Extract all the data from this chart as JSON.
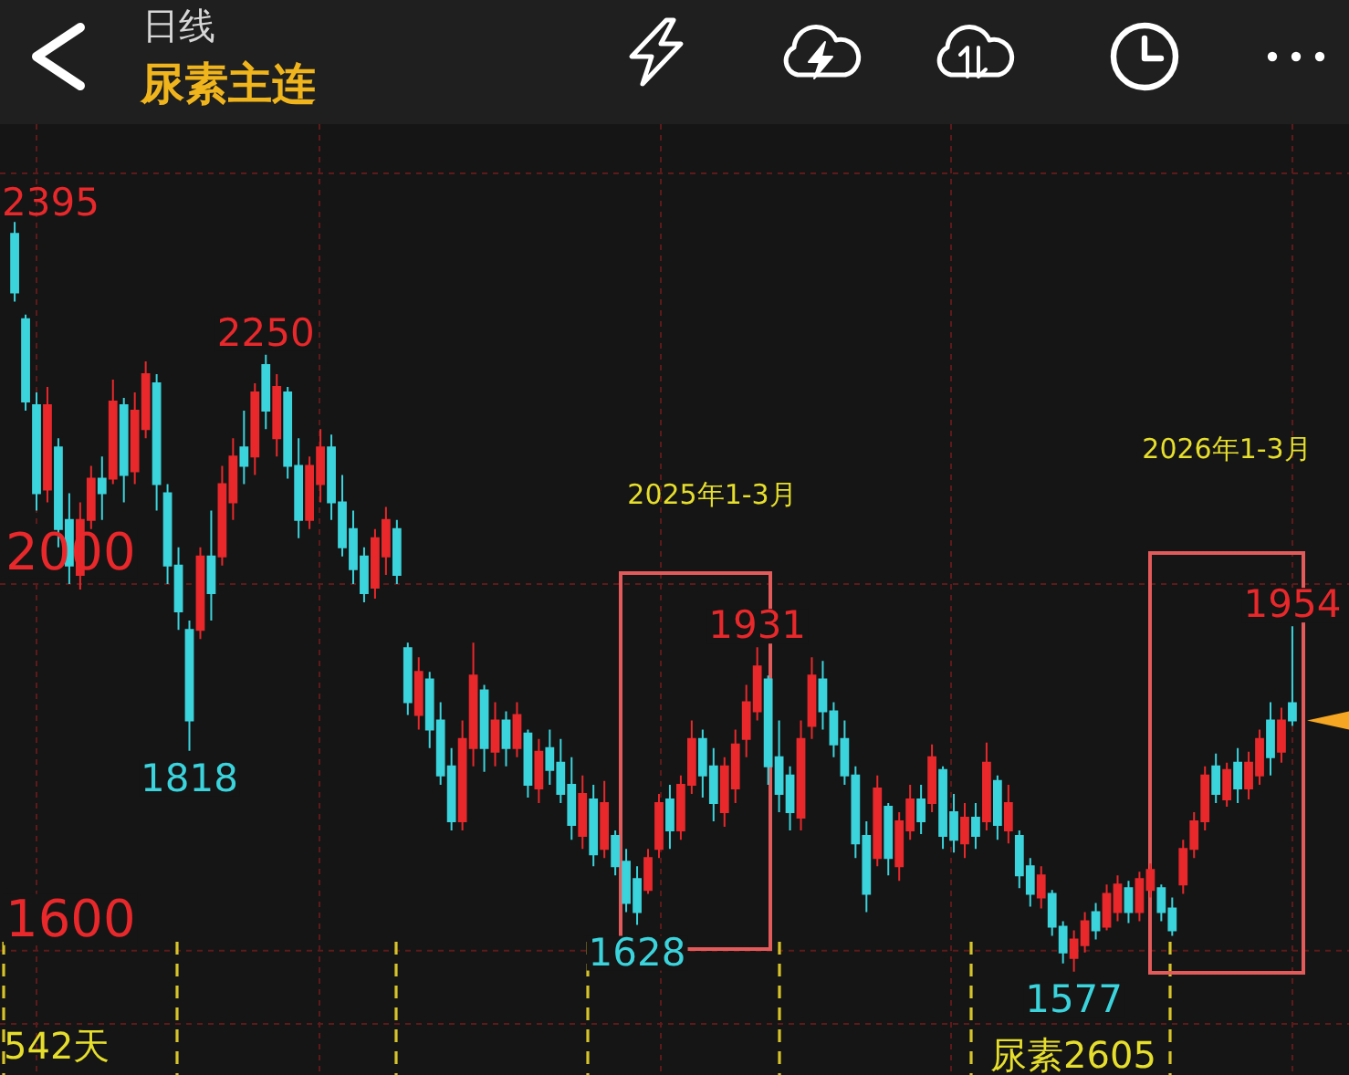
{
  "chart_data": {
    "type": "candlestick",
    "title": "尿素主连",
    "subtitle": "日线",
    "categories": [
      null,
      null,
      null,
      null,
      null,
      null,
      null,
      null,
      null,
      null,
      null,
      null,
      null,
      null,
      null,
      null,
      null,
      null,
      null,
      null,
      null,
      null,
      null,
      null,
      null,
      null,
      null,
      null,
      null,
      null,
      null,
      null,
      null,
      null,
      null,
      null,
      null,
      null,
      null,
      null,
      null,
      null,
      null,
      null,
      null,
      null,
      null,
      null,
      null,
      null,
      null,
      null,
      null,
      null,
      null,
      null,
      null,
      null,
      null,
      null,
      null,
      null,
      null,
      null,
      null,
      null,
      null,
      null,
      null,
      null,
      null,
      null,
      null,
      null,
      null,
      null,
      null,
      null,
      null,
      null,
      null,
      null,
      null,
      null,
      null,
      null,
      null,
      null,
      null,
      null,
      null,
      null,
      null,
      null,
      null,
      null,
      null,
      null,
      null,
      null,
      null,
      null,
      null,
      null,
      null,
      null,
      null,
      null,
      null,
      null,
      null,
      null,
      null,
      null,
      null,
      null,
      null,
      null
    ],
    "ohlc": [
      [
        2382,
        2395,
        2308,
        2318
      ],
      [
        2289,
        2294,
        2189,
        2199
      ],
      [
        2195,
        2209,
        2080,
        2099
      ],
      [
        2103,
        2215,
        2089,
        2195
      ],
      [
        2149,
        2159,
        2040,
        2060
      ],
      [
        2070,
        2099,
        2000,
        2020
      ],
      [
        2010,
        2089,
        1994,
        2070
      ],
      [
        2070,
        2129,
        2060,
        2115
      ],
      [
        2115,
        2139,
        2070,
        2099
      ],
      [
        2115,
        2223,
        2109,
        2199
      ],
      [
        2195,
        2203,
        2089,
        2119
      ],
      [
        2123,
        2209,
        2109,
        2189
      ],
      [
        2169,
        2243,
        2159,
        2229
      ],
      [
        2219,
        2229,
        2080,
        2109
      ],
      [
        2099,
        2109,
        2000,
        2020
      ],
      [
        2020,
        2040,
        1950,
        1970
      ],
      [
        1950,
        1960,
        1818,
        1851
      ],
      [
        1950,
        2040,
        1940,
        2030
      ],
      [
        2030,
        2080,
        1960,
        1990
      ],
      [
        2030,
        2129,
        2020,
        2109
      ],
      [
        2089,
        2159,
        2070,
        2139
      ],
      [
        2149,
        2189,
        2109,
        2129
      ],
      [
        2139,
        2219,
        2119,
        2209
      ],
      [
        2239,
        2250,
        2169,
        2189
      ],
      [
        2159,
        2229,
        2139,
        2215
      ],
      [
        2209,
        2215,
        2115,
        2129
      ],
      [
        2129,
        2159,
        2050,
        2070
      ],
      [
        2070,
        2139,
        2060,
        2129
      ],
      [
        2109,
        2169,
        2089,
        2149
      ],
      [
        2149,
        2163,
        2070,
        2089
      ],
      [
        2089,
        2119,
        2030,
        2040
      ],
      [
        2060,
        2080,
        2000,
        2016
      ],
      [
        2030,
        2040,
        1980,
        1990
      ],
      [
        1996,
        2060,
        1984,
        2050
      ],
      [
        2030,
        2084,
        2010,
        2070
      ],
      [
        2060,
        2070,
        2000,
        2010
      ],
      [
        1930,
        1936,
        1857,
        1871
      ],
      [
        1857,
        1920,
        1841,
        1904
      ],
      [
        1896,
        1904,
        1821,
        1841
      ],
      [
        1851,
        1871,
        1781,
        1791
      ],
      [
        1801,
        1821,
        1731,
        1741
      ],
      [
        1741,
        1851,
        1731,
        1831
      ],
      [
        1821,
        1936,
        1801,
        1900
      ],
      [
        1884,
        1890,
        1795,
        1821
      ],
      [
        1817,
        1871,
        1801,
        1851
      ],
      [
        1851,
        1861,
        1801,
        1821
      ],
      [
        1821,
        1871,
        1811,
        1857
      ],
      [
        1837,
        1841,
        1767,
        1781
      ],
      [
        1777,
        1831,
        1761,
        1817
      ],
      [
        1821,
        1841,
        1781,
        1797
      ],
      [
        1805,
        1831,
        1761,
        1771
      ],
      [
        1781,
        1811,
        1721,
        1737
      ],
      [
        1725,
        1791,
        1711,
        1771
      ],
      [
        1765,
        1781,
        1692,
        1705
      ],
      [
        1711,
        1785,
        1701,
        1761
      ],
      [
        1725,
        1731,
        1682,
        1692
      ],
      [
        1697,
        1711,
        1642,
        1652
      ],
      [
        1678,
        1692,
        1628,
        1642
      ],
      [
        1666,
        1711,
        1662,
        1701
      ],
      [
        1711,
        1771,
        1701,
        1761
      ],
      [
        1765,
        1781,
        1711,
        1731
      ],
      [
        1731,
        1791,
        1721,
        1781
      ],
      [
        1781,
        1851,
        1771,
        1831
      ],
      [
        1831,
        1841,
        1767,
        1791
      ],
      [
        1801,
        1821,
        1741,
        1761
      ],
      [
        1751,
        1811,
        1735,
        1801
      ],
      [
        1777,
        1841,
        1761,
        1825
      ],
      [
        1831,
        1890,
        1811,
        1871
      ],
      [
        1861,
        1931,
        1851,
        1910
      ],
      [
        1896,
        1900,
        1781,
        1801
      ],
      [
        1811,
        1851,
        1751,
        1771
      ],
      [
        1791,
        1801,
        1731,
        1751
      ],
      [
        1745,
        1851,
        1731,
        1831
      ],
      [
        1845,
        1920,
        1831,
        1900
      ],
      [
        1896,
        1916,
        1841,
        1861
      ],
      [
        1861,
        1871,
        1811,
        1825
      ],
      [
        1831,
        1851,
        1781,
        1791
      ],
      [
        1791,
        1801,
        1701,
        1717
      ],
      [
        1725,
        1741,
        1642,
        1662
      ],
      [
        1701,
        1791,
        1692,
        1777
      ],
      [
        1757,
        1761,
        1682,
        1701
      ],
      [
        1692,
        1751,
        1676,
        1741
      ],
      [
        1731,
        1781,
        1721,
        1765
      ],
      [
        1765,
        1781,
        1727,
        1741
      ],
      [
        1761,
        1825,
        1751,
        1811
      ],
      [
        1797,
        1801,
        1711,
        1725
      ],
      [
        1751,
        1771,
        1707,
        1721
      ],
      [
        1717,
        1761,
        1701,
        1745
      ],
      [
        1745,
        1761,
        1711,
        1725
      ],
      [
        1741,
        1827,
        1731,
        1805
      ],
      [
        1785,
        1791,
        1721,
        1737
      ],
      [
        1731,
        1781,
        1717,
        1761
      ],
      [
        1725,
        1731,
        1668,
        1682
      ],
      [
        1692,
        1701,
        1648,
        1662
      ],
      [
        1658,
        1692,
        1646,
        1682
      ],
      [
        1662,
        1666,
        1616,
        1626
      ],
      [
        1626,
        1632,
        1586,
        1598
      ],
      [
        1592,
        1622,
        1577,
        1612
      ],
      [
        1606,
        1642,
        1598,
        1632
      ],
      [
        1642,
        1652,
        1612,
        1622
      ],
      [
        1626,
        1672,
        1622,
        1662
      ],
      [
        1642,
        1682,
        1632,
        1672
      ],
      [
        1668,
        1676,
        1630,
        1642
      ],
      [
        1642,
        1686,
        1632,
        1678
      ],
      [
        1666,
        1695,
        1658,
        1688
      ],
      [
        1668,
        1672,
        1632,
        1642
      ],
      [
        1646,
        1658,
        1616,
        1622
      ],
      [
        1672,
        1721,
        1662,
        1711
      ],
      [
        1711,
        1751,
        1701,
        1741
      ],
      [
        1741,
        1801,
        1731,
        1791
      ],
      [
        1801,
        1815,
        1761,
        1771
      ],
      [
        1765,
        1805,
        1757,
        1797
      ],
      [
        1805,
        1821,
        1761,
        1777
      ],
      [
        1777,
        1817,
        1765,
        1805
      ],
      [
        1791,
        1841,
        1781,
        1831
      ],
      [
        1851,
        1871,
        1791,
        1811
      ],
      [
        1817,
        1865,
        1805,
        1851
      ],
      [
        1870,
        1954,
        1845,
        1851
      ]
    ],
    "colors": [
      "#3bd3dc",
      "#3bd3dc",
      "#3bd3dc",
      "#e8282b",
      "#3bd3dc",
      "#3bd3dc",
      "#e8282b",
      "#e8282b",
      "#3bd3dc",
      "#e8282b",
      "#3bd3dc",
      "#e8282b",
      "#e8282b",
      "#3bd3dc",
      "#3bd3dc",
      "#3bd3dc",
      "#3bd3dc",
      "#e8282b",
      "#3bd3dc",
      "#e8282b",
      "#e8282b",
      "#3bd3dc",
      "#e8282b",
      "#3bd3dc",
      "#e8282b",
      "#3bd3dc",
      "#3bd3dc",
      "#e8282b",
      "#e8282b",
      "#3bd3dc",
      "#3bd3dc",
      "#3bd3dc",
      "#3bd3dc",
      "#e8282b",
      "#e8282b",
      "#3bd3dc",
      "#3bd3dc",
      "#e8282b",
      "#3bd3dc",
      "#3bd3dc",
      "#3bd3dc",
      "#e8282b",
      "#e8282b",
      "#3bd3dc",
      "#e8282b",
      "#3bd3dc",
      "#e8282b",
      "#3bd3dc",
      "#e8282b",
      "#3bd3dc",
      "#3bd3dc",
      "#3bd3dc",
      "#e8282b",
      "#3bd3dc",
      "#e8282b",
      "#3bd3dc",
      "#3bd3dc",
      "#3bd3dc",
      "#e8282b",
      "#e8282b",
      "#3bd3dc",
      "#e8282b",
      "#e8282b",
      "#3bd3dc",
      "#3bd3dc",
      "#e8282b",
      "#e8282b",
      "#e8282b",
      "#e8282b",
      "#3bd3dc",
      "#3bd3dc",
      "#3bd3dc",
      "#e8282b",
      "#e8282b",
      "#3bd3dc",
      "#3bd3dc",
      "#3bd3dc",
      "#3bd3dc",
      "#3bd3dc",
      "#e8282b",
      "#3bd3dc",
      "#e8282b",
      "#e8282b",
      "#3bd3dc",
      "#e8282b",
      "#3bd3dc",
      "#3bd3dc",
      "#e8282b",
      "#3bd3dc",
      "#e8282b",
      "#3bd3dc",
      "#e8282b",
      "#3bd3dc",
      "#3bd3dc",
      "#e8282b",
      "#3bd3dc",
      "#3bd3dc",
      "#e8282b",
      "#e8282b",
      "#3bd3dc",
      "#e8282b",
      "#e8282b",
      "#3bd3dc",
      "#e8282b",
      "#e8282b",
      "#3bd3dc",
      "#3bd3dc",
      "#e8282b",
      "#e8282b",
      "#e8282b",
      "#3bd3dc",
      "#e8282b",
      "#3bd3dc",
      "#e8282b",
      "#e8282b",
      "#3bd3dc",
      "#e8282b",
      "#3bd3dc"
    ],
    "ylim": [
      1520,
      2448
    ],
    "yticks": [
      1600,
      2000
    ],
    "grid": "y",
    "tick_labels": "y",
    "annotations": [
      {
        "text": "2250",
        "y": 2250
      },
      {
        "text": "1818",
        "y": 1818
      },
      {
        "text": "1628",
        "y": 1628
      },
      {
        "text": "1931",
        "y": 1931
      },
      {
        "text": "1577",
        "y": 1577
      },
      {
        "text": "1954",
        "y": 1954
      },
      "2395",
      "2025年1-3月",
      "2026年1-3月",
      "542天",
      "尿素2605"
    ]
  }
}
